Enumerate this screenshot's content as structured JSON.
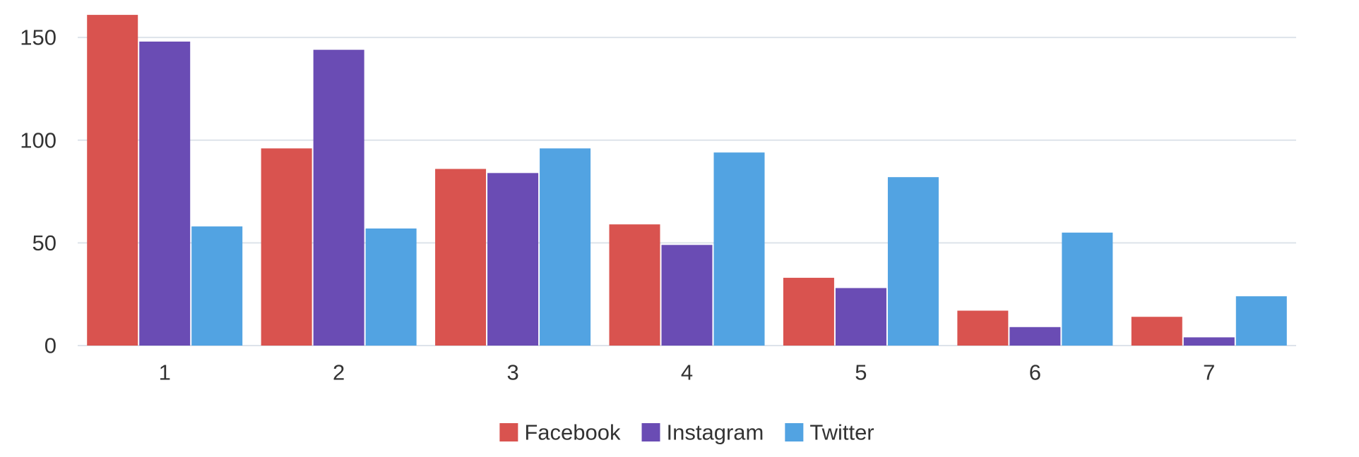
{
  "chart_data": {
    "type": "bar",
    "categories": [
      "1",
      "2",
      "3",
      "4",
      "5",
      "6",
      "7"
    ],
    "series": [
      {
        "name": "Facebook",
        "color": "#d9534f",
        "values": [
          161,
          96,
          86,
          59,
          33,
          17,
          14
        ]
      },
      {
        "name": "Instagram",
        "color": "#6a4cb4",
        "values": [
          148,
          144,
          84,
          49,
          28,
          9,
          4
        ]
      },
      {
        "name": "Twitter",
        "color": "#52a3e2",
        "values": [
          58,
          57,
          96,
          94,
          82,
          55,
          24
        ]
      }
    ],
    "title": "",
    "xlabel": "",
    "ylabel": "",
    "ylim": [
      0,
      160
    ],
    "yticks": [
      0,
      50,
      100,
      150
    ],
    "grid": true,
    "legend_position": "bottom-center"
  }
}
